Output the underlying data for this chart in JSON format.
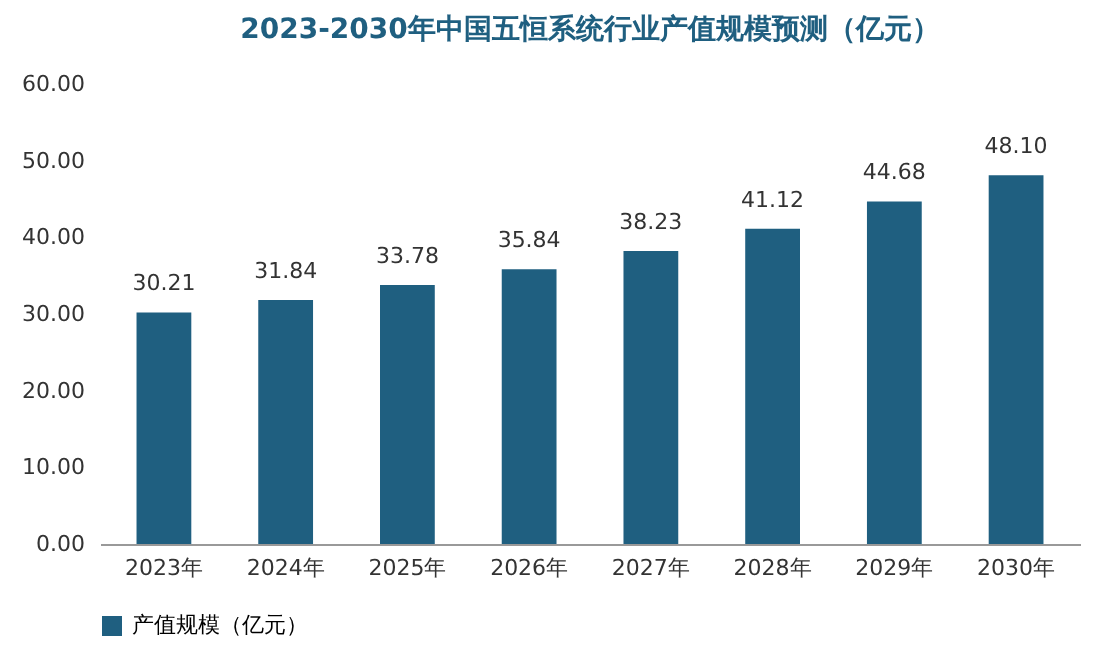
{
  "chart_data": {
    "type": "bar",
    "title": "2023-2030年中国五恒系统行业产值规模预测（亿元）",
    "categories": [
      "2023年",
      "2024年",
      "2025年",
      "2026年",
      "2027年",
      "2028年",
      "2029年",
      "2030年"
    ],
    "series": [
      {
        "name": "产值规模（亿元）",
        "color": "#1f5f80",
        "values": [
          30.21,
          31.84,
          33.78,
          35.84,
          38.23,
          41.12,
          44.68,
          48.1
        ]
      }
    ],
    "ylim": [
      0,
      60
    ],
    "yticks": [
      {
        "value": 0,
        "label": "0.00"
      },
      {
        "value": 10,
        "label": "10.00"
      },
      {
        "value": 20,
        "label": "20.00"
      },
      {
        "value": 30,
        "label": "30.00"
      },
      {
        "value": 40,
        "label": "40.00"
      },
      {
        "value": 50,
        "label": "50.00"
      },
      {
        "value": 60,
        "label": "60.00"
      }
    ],
    "value_labels": [
      "30.21",
      "31.84",
      "33.78",
      "35.84",
      "38.23",
      "41.12",
      "44.68",
      "48.10"
    ],
    "legend": "bottom"
  }
}
